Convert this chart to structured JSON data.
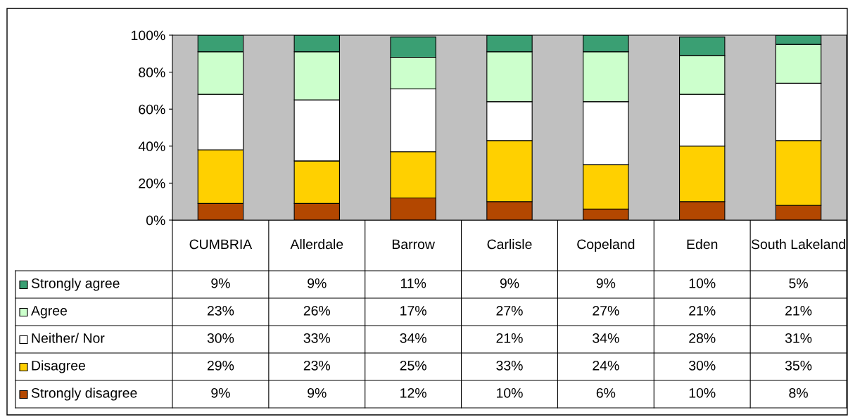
{
  "chart_data": {
    "type": "bar",
    "stacked": true,
    "categories": [
      "CUMBRIA",
      "Allerdale",
      "Barrow",
      "Carlisle",
      "Copeland",
      "Eden",
      "South Lakeland"
    ],
    "ylim": [
      0,
      100
    ],
    "yticks": [
      {
        "value": 0,
        "label": "0%"
      },
      {
        "value": 20,
        "label": "20%"
      },
      {
        "value": 40,
        "label": "40%"
      },
      {
        "value": 60,
        "label": "60%"
      },
      {
        "value": 80,
        "label": "80%"
      },
      {
        "value": 100,
        "label": "100%"
      }
    ],
    "legend": "bottom",
    "series": [
      {
        "name": "Strongly disagree",
        "color": "#b34700",
        "values": [
          9,
          9,
          12,
          10,
          6,
          10,
          8
        ],
        "value_labels": [
          "9%",
          "9%",
          "12%",
          "10%",
          "6%",
          "10%",
          "8%"
        ]
      },
      {
        "name": "Disagree",
        "color": "#ffd000",
        "values": [
          29,
          23,
          25,
          33,
          24,
          30,
          35
        ],
        "value_labels": [
          "29%",
          "23%",
          "25%",
          "33%",
          "24%",
          "30%",
          "35%"
        ]
      },
      {
        "name": "Neither/ Nor",
        "color": "#ffffff",
        "values": [
          30,
          33,
          34,
          21,
          34,
          28,
          31
        ],
        "value_labels": [
          "30%",
          "33%",
          "34%",
          "21%",
          "34%",
          "28%",
          "31%"
        ]
      },
      {
        "name": "Agree",
        "color": "#ccffcc",
        "values": [
          23,
          26,
          17,
          27,
          27,
          21,
          21
        ],
        "value_labels": [
          "23%",
          "26%",
          "17%",
          "27%",
          "27%",
          "21%",
          "21%"
        ]
      },
      {
        "name": "Strongly agree",
        "color": "#3a9f73",
        "values": [
          9,
          9,
          11,
          9,
          9,
          10,
          5
        ],
        "value_labels": [
          "9%",
          "9%",
          "11%",
          "9%",
          "9%",
          "10%",
          "5%"
        ]
      }
    ]
  }
}
